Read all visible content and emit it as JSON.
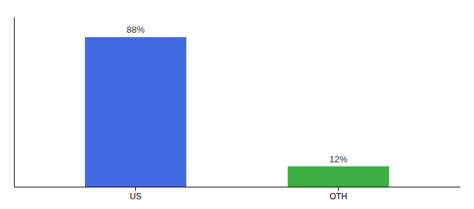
{
  "chart_data": {
    "type": "bar",
    "categories": [
      "US",
      "OTH"
    ],
    "values": [
      88,
      12
    ],
    "colors": [
      "#4169E1",
      "#3CB043"
    ],
    "ylim": [
      0,
      100
    ],
    "data_labels": true,
    "value_labels": [
      "88%",
      "12%"
    ],
    "tick_labels": "x"
  }
}
